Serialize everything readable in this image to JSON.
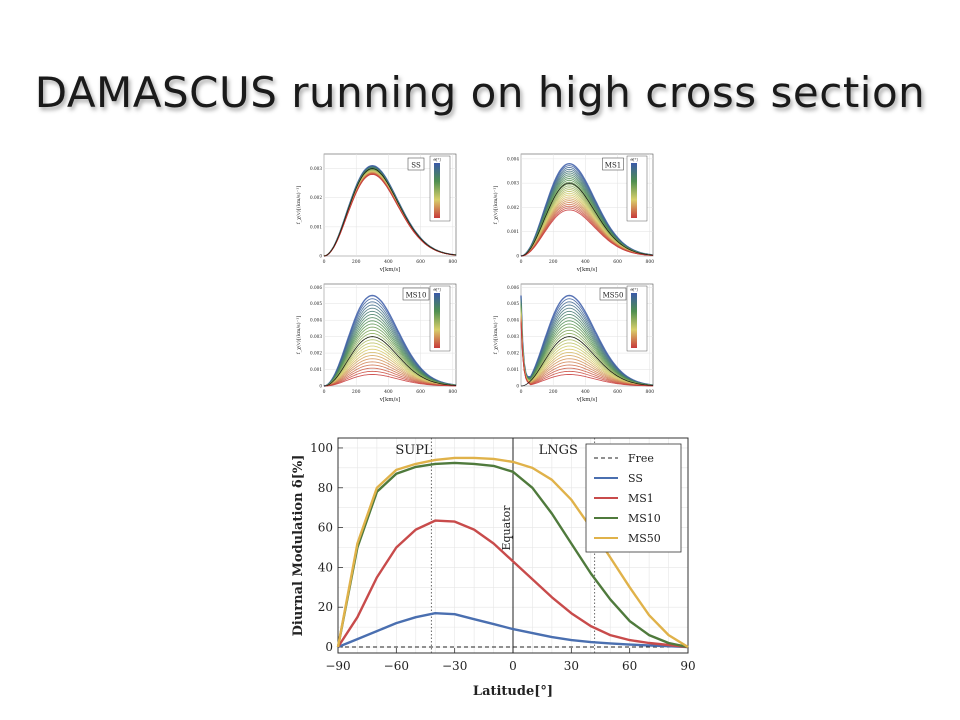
{
  "slide": {
    "title": "DAMASCUS running on high cross section"
  },
  "chart_data": [
    {
      "type": "line",
      "panel_label": "SS",
      "xlabel": "v[km/s]",
      "ylabel": "f_χ(v)[(km/s)⁻¹]",
      "x_ticks": [
        0,
        200,
        400,
        600,
        800
      ],
      "y_ticks": [
        0,
        0.001,
        0.002,
        0.003
      ],
      "xlim": [
        0,
        820
      ],
      "ylim": [
        0,
        0.0035
      ],
      "colorbar_label": "Θ[°]",
      "colorbar_colors": [
        "#3a5aa8",
        "#4f8f4f",
        "#d8cf6a",
        "#c83a3a"
      ],
      "peak_value": 0.003,
      "upper_envelope_peak": 0.0031,
      "lower_envelope_peak": 0.0028
    },
    {
      "type": "line",
      "panel_label": "MS1",
      "xlabel": "v[km/s]",
      "ylabel": "f_χ(v)[(km/s)⁻¹]",
      "x_ticks": [
        0,
        200,
        400,
        600,
        800
      ],
      "y_ticks": [
        0,
        0.001,
        0.002,
        0.003,
        0.004
      ],
      "xlim": [
        0,
        820
      ],
      "ylim": [
        0,
        0.0042
      ],
      "colorbar_label": "Θ[°]",
      "colorbar_colors": [
        "#3a5aa8",
        "#4f8f4f",
        "#d8cf6a",
        "#c83a3a"
      ],
      "peak_value": 0.003,
      "upper_envelope_peak": 0.0038,
      "lower_envelope_peak": 0.0019
    },
    {
      "type": "line",
      "panel_label": "MS10",
      "xlabel": "v[km/s]",
      "ylabel": "f_χ(v)[(km/s)⁻¹]",
      "x_ticks": [
        0,
        200,
        400,
        600,
        800
      ],
      "y_ticks": [
        0,
        0.001,
        0.002,
        0.003,
        0.004,
        0.005,
        0.006
      ],
      "xlim": [
        0,
        820
      ],
      "ylim": [
        0,
        0.0062
      ],
      "colorbar_label": "Θ[°]",
      "colorbar_colors": [
        "#3a5aa8",
        "#4f8f4f",
        "#d8cf6a",
        "#c83a3a"
      ],
      "peak_value": 0.003,
      "upper_envelope_peak": 0.0055,
      "lower_envelope_peak": 0.0007
    },
    {
      "type": "line",
      "panel_label": "MS50",
      "xlabel": "v[km/s]",
      "ylabel": "f_χ(v)[(km/s)⁻¹]",
      "x_ticks": [
        0,
        200,
        400,
        600,
        800
      ],
      "y_ticks": [
        0,
        0.001,
        0.002,
        0.003,
        0.004,
        0.005,
        0.006
      ],
      "xlim": [
        0,
        820
      ],
      "ylim": [
        0,
        0.0062
      ],
      "colorbar_label": "Θ[°]",
      "colorbar_colors": [
        "#3a5aa8",
        "#4f8f4f",
        "#d8cf6a",
        "#c83a3a"
      ],
      "peak_value": 0.003,
      "upper_envelope_peak": 0.0055,
      "lower_envelope_peak": 0.0007,
      "low_velocity_spike": 0.0055
    },
    {
      "type": "line",
      "xlabel": "Latitude[°]",
      "ylabel": "Diurnal Modulation δ[%]",
      "xlim": [
        -90,
        90
      ],
      "ylim": [
        -3,
        105
      ],
      "x_ticks": [
        -90,
        -60,
        -30,
        0,
        30,
        60,
        90
      ],
      "y_ticks": [
        0,
        20,
        40,
        60,
        80,
        100
      ],
      "grid": true,
      "legend_position": "top-right",
      "annotations": [
        {
          "text": "SUPL",
          "x": -42
        },
        {
          "text": "LNGS",
          "x": 42
        },
        {
          "text": "Equator",
          "x": 0
        }
      ],
      "series": [
        {
          "name": "Free",
          "color": "#222222",
          "dashed": true,
          "x": [
            -90,
            90
          ],
          "values": [
            0,
            0
          ]
        },
        {
          "name": "SS",
          "color": "#4a6fb0",
          "x": [
            -90,
            -80,
            -70,
            -60,
            -50,
            -40,
            -30,
            -20,
            -10,
            0,
            10,
            20,
            30,
            40,
            50,
            60,
            70,
            80,
            90
          ],
          "values": [
            0,
            4,
            8,
            12,
            15,
            17,
            16.5,
            14,
            11.5,
            9,
            7,
            5,
            3.5,
            2.5,
            1.8,
            1.2,
            0.8,
            0.4,
            0
          ]
        },
        {
          "name": "MS1",
          "color": "#c84b4b",
          "x": [
            -90,
            -80,
            -70,
            -60,
            -50,
            -40,
            -30,
            -20,
            -10,
            0,
            10,
            20,
            30,
            40,
            50,
            60,
            70,
            80,
            90
          ],
          "values": [
            0,
            15,
            35,
            50,
            59,
            63.5,
            63,
            59,
            52,
            43,
            34,
            25,
            17,
            10.5,
            6,
            3.5,
            2,
            1,
            0
          ]
        },
        {
          "name": "MS10",
          "color": "#4f7a3c",
          "x": [
            -90,
            -80,
            -70,
            -60,
            -50,
            -40,
            -30,
            -20,
            -10,
            0,
            10,
            20,
            30,
            40,
            50,
            60,
            70,
            80,
            90
          ],
          "values": [
            0,
            50,
            78,
            87,
            90.5,
            92,
            92.5,
            92,
            91,
            88,
            80,
            67,
            52,
            37,
            24,
            13,
            6,
            2,
            0
          ]
        },
        {
          "name": "MS50",
          "color": "#e0b24a",
          "x": [
            -90,
            -80,
            -70,
            -60,
            -50,
            -40,
            -30,
            -20,
            -10,
            0,
            10,
            20,
            30,
            40,
            50,
            60,
            70,
            80,
            90
          ],
          "values": [
            0,
            52,
            80,
            89,
            92,
            94,
            95,
            95,
            94.5,
            93,
            90,
            84,
            74,
            60,
            45,
            30,
            16,
            6,
            0
          ]
        }
      ]
    }
  ]
}
